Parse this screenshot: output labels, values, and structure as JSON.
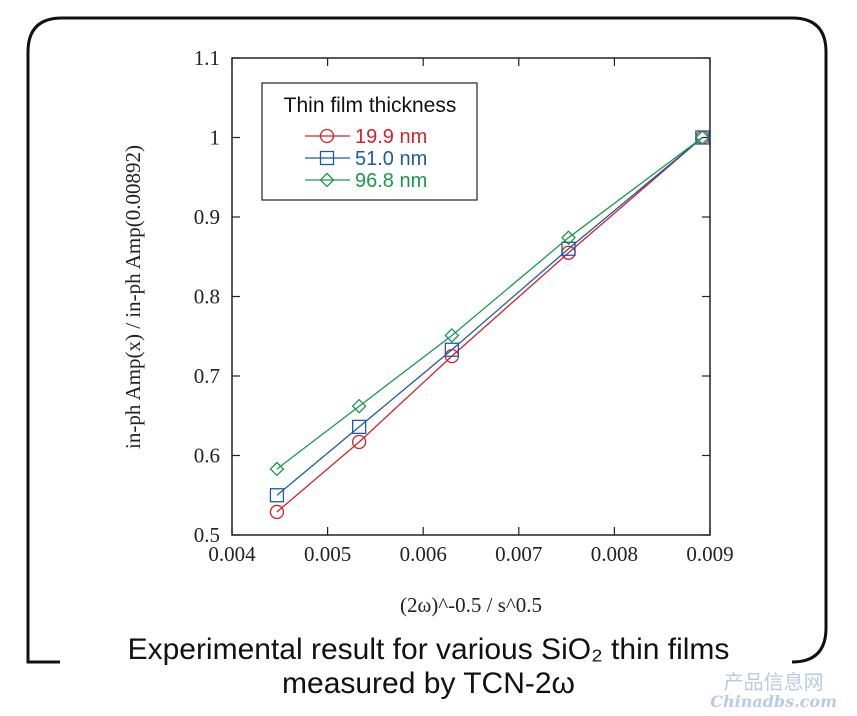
{
  "caption": {
    "line1": "Experimental result for various SiO₂ thin films",
    "line2": "measured by TCN-2ω"
  },
  "watermark": {
    "line1": "产品信息网",
    "line2": "Chinadbs.com"
  },
  "chart_data": {
    "type": "line",
    "xlabel": "(2ω)^-0.5 / s^0.5",
    "ylabel": "in-ph Amp(x) / in-ph Amp(0.00892)",
    "xlim": [
      0.004,
      0.009
    ],
    "ylim": [
      0.5,
      1.1
    ],
    "xticks": [
      "0.004",
      "0.005",
      "0.006",
      "0.007",
      "0.008",
      "0.009"
    ],
    "yticks": [
      "0.5",
      "0.6",
      "0.7",
      "0.8",
      "0.9",
      "1",
      "1.1"
    ],
    "grid": false,
    "legend": {
      "title": "Thin film thickness",
      "placement": "top-left"
    },
    "x": [
      0.00447,
      0.00533,
      0.0063,
      0.00752,
      0.00892
    ],
    "series": [
      {
        "name": "19.9 nm",
        "color": "#d2232a",
        "marker": "circle",
        "values": [
          0.529,
          0.617,
          0.725,
          0.855,
          1.0
        ]
      },
      {
        "name": "51.0 nm",
        "color": "#1f5aa6",
        "marker": "square",
        "values": [
          0.55,
          0.636,
          0.733,
          0.86,
          1.0
        ]
      },
      {
        "name": "96.8 nm",
        "color": "#1a9850",
        "marker": "diamond",
        "values": [
          0.583,
          0.662,
          0.751,
          0.874,
          1.0
        ]
      }
    ]
  }
}
